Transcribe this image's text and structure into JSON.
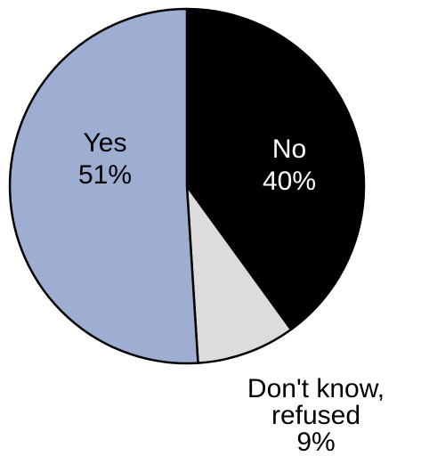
{
  "chart_data": {
    "type": "pie",
    "title": "",
    "slices": [
      {
        "name": "No",
        "value": 40,
        "value_label": "40%",
        "color": "#000000",
        "label_color": "#ffffff"
      },
      {
        "name": "Don't know, refused",
        "label_lines": [
          "Don't know,",
          "refused"
        ],
        "value": 9,
        "value_label": "9%",
        "color": "#dcdcdc",
        "label_color": "#000000"
      },
      {
        "name": "Yes",
        "value": 51,
        "value_label": "51%",
        "color": "#9eadd2",
        "label_color": "#000000"
      }
    ],
    "legend": "none",
    "start": "12 o'clock",
    "direction": "clockwise"
  }
}
